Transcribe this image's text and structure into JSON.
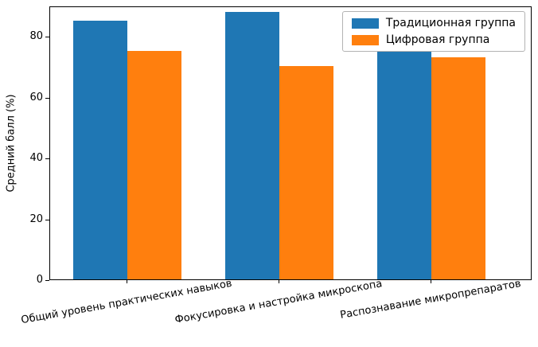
{
  "chart_data": {
    "type": "bar",
    "title": "",
    "xlabel": "",
    "ylabel": "Средний балл (%)",
    "categories": [
      "Общий уровень практических навыков",
      "Фокусировка и настройка микроскопа",
      "Распознавание микропрепаратов"
    ],
    "series": [
      {
        "name": "Традиционная группа",
        "color": "#1f77b4",
        "values": [
          85,
          88,
          80
        ]
      },
      {
        "name": "Цифровая группа",
        "color": "#ff7f0e",
        "values": [
          75,
          70,
          73
        ]
      }
    ],
    "ylim": [
      0,
      90
    ],
    "yticks": [
      0,
      20,
      40,
      60,
      80
    ],
    "legend_position": "upper right",
    "grid": false
  }
}
